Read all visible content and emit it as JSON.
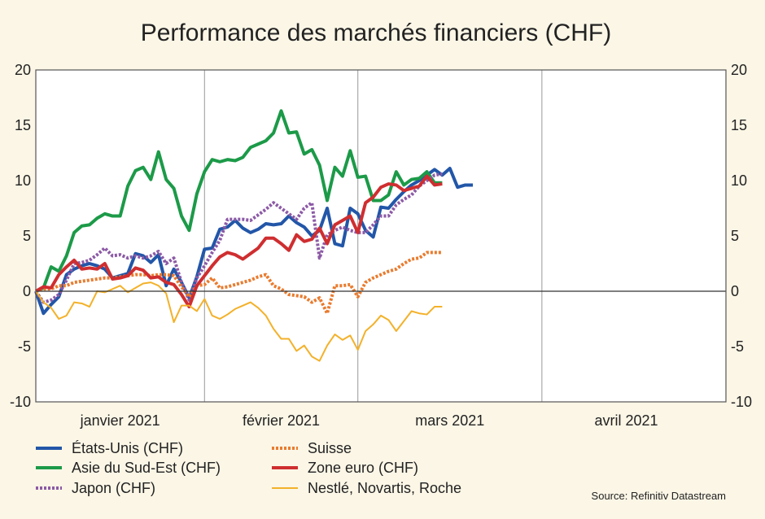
{
  "chart_data": {
    "type": "line",
    "title": "Performance des marchés financiers (CHF)",
    "source": "Source: Refinitiv Datastream",
    "ylim": [
      -10,
      20
    ],
    "yticks": [
      -10,
      -5,
      0,
      5,
      10,
      15,
      20
    ],
    "xlim": [
      0,
      90
    ],
    "months": [
      {
        "label": "janvier 2021",
        "pos": 0
      },
      {
        "label": "février 2021",
        "pos": 22
      },
      {
        "label": "mars 2021",
        "pos": 42
      },
      {
        "label": "avril 2021",
        "pos": 66
      }
    ],
    "month_end": 88,
    "grid": "vertical-month-lines",
    "legend": "bottom",
    "x": [
      0,
      1,
      2,
      3,
      4,
      5,
      6,
      7,
      8,
      9,
      10,
      11,
      12,
      13,
      14,
      15,
      16,
      17,
      18,
      19,
      20,
      21,
      22,
      23,
      24,
      25,
      26,
      27,
      28,
      29,
      30,
      31,
      32,
      33,
      34,
      35,
      36,
      37,
      38,
      39,
      40,
      41,
      42,
      43,
      44,
      45,
      46,
      47,
      48,
      49,
      50,
      51,
      52,
      53,
      54,
      55,
      56,
      57,
      58,
      59,
      60,
      61
    ],
    "series": [
      {
        "name": "États-Unis (CHF)",
        "color": "#2256a8",
        "style": "solid",
        "width": 4,
        "values": [
          0.0,
          -2.0,
          -1.2,
          -0.5,
          1.5,
          2.0,
          2.3,
          2.5,
          2.3,
          2.0,
          1.2,
          1.4,
          1.6,
          3.4,
          3.2,
          2.6,
          3.3,
          0.5,
          2.0,
          0.8,
          -0.6,
          1.3,
          3.8,
          3.9,
          5.6,
          5.8,
          6.4,
          5.7,
          5.3,
          5.6,
          6.1,
          6.0,
          6.1,
          6.8,
          6.2,
          5.8,
          5.0,
          5.5,
          7.5,
          4.3,
          4.1,
          7.5,
          7.0,
          5.5,
          4.9,
          7.6,
          7.5,
          8.3,
          9.0,
          9.6,
          10.0,
          10.5,
          11.0,
          10.5,
          11.1,
          9.4,
          9.6,
          9.6,
          null,
          null,
          null,
          null
        ]
      },
      {
        "name": "Asie du Sud-Est (CHF)",
        "color": "#1c9a48",
        "style": "solid",
        "width": 4,
        "values": [
          0.0,
          0.3,
          2.2,
          1.8,
          3.2,
          5.3,
          5.9,
          6.0,
          6.6,
          7.0,
          6.8,
          6.8,
          9.5,
          10.9,
          11.2,
          10.1,
          12.6,
          10.1,
          9.3,
          6.8,
          5.5,
          8.8,
          10.8,
          11.9,
          11.7,
          11.9,
          11.8,
          12.1,
          13.0,
          13.3,
          13.6,
          14.3,
          16.3,
          14.3,
          14.4,
          12.4,
          12.8,
          11.4,
          8.2,
          11.2,
          10.4,
          12.7,
          10.3,
          10.4,
          8.2,
          8.2,
          8.7,
          10.8,
          9.6,
          10.1,
          10.2,
          10.8,
          9.8,
          9.8,
          null,
          null,
          null,
          null,
          null,
          null,
          null,
          null
        ]
      },
      {
        "name": "Japon (CHF)",
        "color": "#8c5aa6",
        "style": "dotted",
        "width": 4,
        "values": [
          0.0,
          -1.0,
          -0.8,
          -0.3,
          1.0,
          2.5,
          2.6,
          2.8,
          3.3,
          3.9,
          3.2,
          3.3,
          3.0,
          3.2,
          3.0,
          3.2,
          3.6,
          2.5,
          3.0,
          0.8,
          -0.8,
          1.2,
          2.3,
          3.5,
          4.6,
          6.5,
          6.5,
          6.5,
          6.4,
          6.9,
          7.4,
          8.0,
          7.5,
          7.0,
          6.5,
          7.5,
          8.0,
          3.0,
          5.1,
          5.5,
          5.8,
          5.5,
          5.3,
          5.3,
          6.0,
          6.8,
          6.8,
          7.8,
          8.3,
          8.7,
          9.5,
          10.0,
          10.5,
          10.6,
          null,
          null,
          null,
          null,
          null,
          null,
          null,
          null
        ]
      },
      {
        "name": "Suisse",
        "color": "#ea7b2e",
        "style": "dotted",
        "width": 4,
        "values": [
          0.0,
          0.2,
          0.2,
          0.5,
          0.5,
          0.8,
          0.9,
          1.0,
          1.1,
          1.2,
          1.2,
          1.3,
          1.4,
          1.5,
          1.5,
          1.4,
          1.5,
          1.5,
          1.4,
          0.4,
          -0.5,
          0.5,
          0.6,
          1.2,
          0.3,
          0.4,
          0.6,
          0.8,
          1.0,
          1.3,
          1.5,
          0.5,
          0.2,
          -0.3,
          -0.4,
          -0.5,
          -1.0,
          -0.6,
          -2.0,
          0.5,
          0.5,
          0.6,
          -0.5,
          0.8,
          1.2,
          1.5,
          1.8,
          2.0,
          2.5,
          2.9,
          3.0,
          3.5,
          3.5,
          3.5,
          null,
          null,
          null,
          null,
          null,
          null,
          null,
          null
        ]
      },
      {
        "name": "Zone euro (CHF)",
        "color": "#cf2e30",
        "style": "solid",
        "width": 4,
        "values": [
          0.0,
          0.4,
          0.3,
          1.5,
          2.2,
          2.8,
          2.0,
          2.1,
          2.0,
          2.5,
          1.1,
          1.2,
          1.4,
          2.1,
          1.9,
          1.2,
          1.3,
          0.8,
          0.6,
          -0.3,
          -1.4,
          0.5,
          1.4,
          2.3,
          3.1,
          3.5,
          3.3,
          2.9,
          3.4,
          3.9,
          4.8,
          4.8,
          4.3,
          3.7,
          5.1,
          4.5,
          4.7,
          5.7,
          4.3,
          6.0,
          6.4,
          6.8,
          5.3,
          8.0,
          8.5,
          9.4,
          9.7,
          9.6,
          9.1,
          9.3,
          9.5,
          10.4,
          9.6,
          9.7,
          null,
          null,
          null,
          null,
          null,
          null,
          null,
          null
        ]
      },
      {
        "name": "Nestlé, Novartis, Roche",
        "color": "#f3b12a",
        "style": "solid",
        "width": 2,
        "values": [
          0.0,
          -1.0,
          -1.5,
          -2.5,
          -2.2,
          -1.0,
          -1.1,
          -1.4,
          0.0,
          -0.1,
          0.2,
          0.5,
          -0.1,
          0.3,
          0.7,
          0.8,
          0.5,
          -0.2,
          -2.8,
          -1.3,
          -1.3,
          -1.8,
          -0.7,
          -2.2,
          -2.5,
          -2.1,
          -1.6,
          -1.3,
          -1.0,
          -1.5,
          -2.2,
          -3.4,
          -4.3,
          -4.3,
          -5.4,
          -4.9,
          -5.9,
          -6.3,
          -4.9,
          -3.9,
          -4.4,
          -4.0,
          -5.3,
          -3.6,
          -3.0,
          -2.2,
          -2.6,
          -3.6,
          -2.7,
          -1.8,
          -2.0,
          -2.1,
          -1.4,
          -1.4,
          null,
          null,
          null,
          null,
          null,
          null,
          null,
          null
        ]
      }
    ]
  }
}
